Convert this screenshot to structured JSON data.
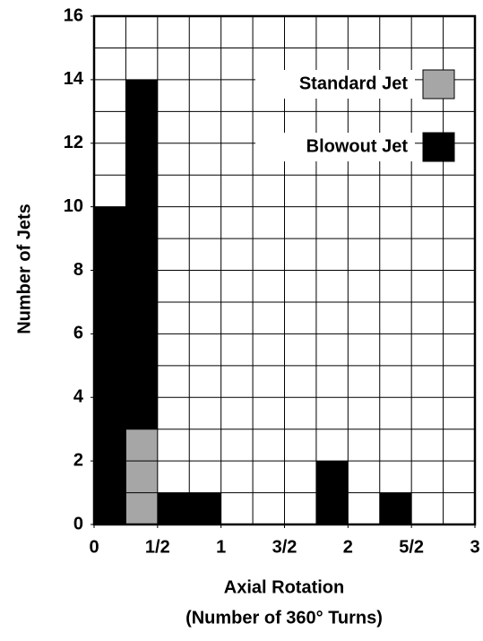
{
  "chart_data": {
    "type": "histogram",
    "bins": [
      0,
      0.25,
      0.5,
      0.75,
      1,
      1.25,
      1.5,
      1.75,
      2,
      2.25,
      2.5,
      2.75,
      3
    ],
    "series": [
      {
        "name": "Blowout Jet",
        "color": "#000000",
        "values": [
          10,
          14,
          1,
          1,
          0,
          0,
          0,
          2,
          0,
          1,
          0,
          0
        ]
      },
      {
        "name": "Standard Jet",
        "color": "#a6a6a6",
        "values": [
          0,
          3,
          0,
          0,
          0,
          0,
          0,
          0,
          0,
          0,
          0,
          0
        ]
      }
    ],
    "xlim": [
      0,
      3
    ],
    "xticks": [
      0,
      {
        "value": 0.5,
        "label": "1/2"
      },
      1,
      {
        "value": 1.5,
        "label": "3/2"
      },
      2,
      {
        "value": 2.5,
        "label": "5/2"
      },
      3
    ],
    "ylim": [
      0,
      16
    ],
    "yticks": [
      0,
      2,
      4,
      6,
      8,
      10,
      12,
      14,
      16
    ],
    "ygrid": [
      1,
      2,
      3,
      4,
      5,
      6,
      7,
      8,
      9,
      10,
      11,
      12,
      13,
      14,
      15
    ],
    "xlabel": [
      "Axial Rotation",
      "(Number of 360° Turns)"
    ],
    "ylabel": "Number of Jets",
    "grid": true,
    "legend": "upper right"
  }
}
